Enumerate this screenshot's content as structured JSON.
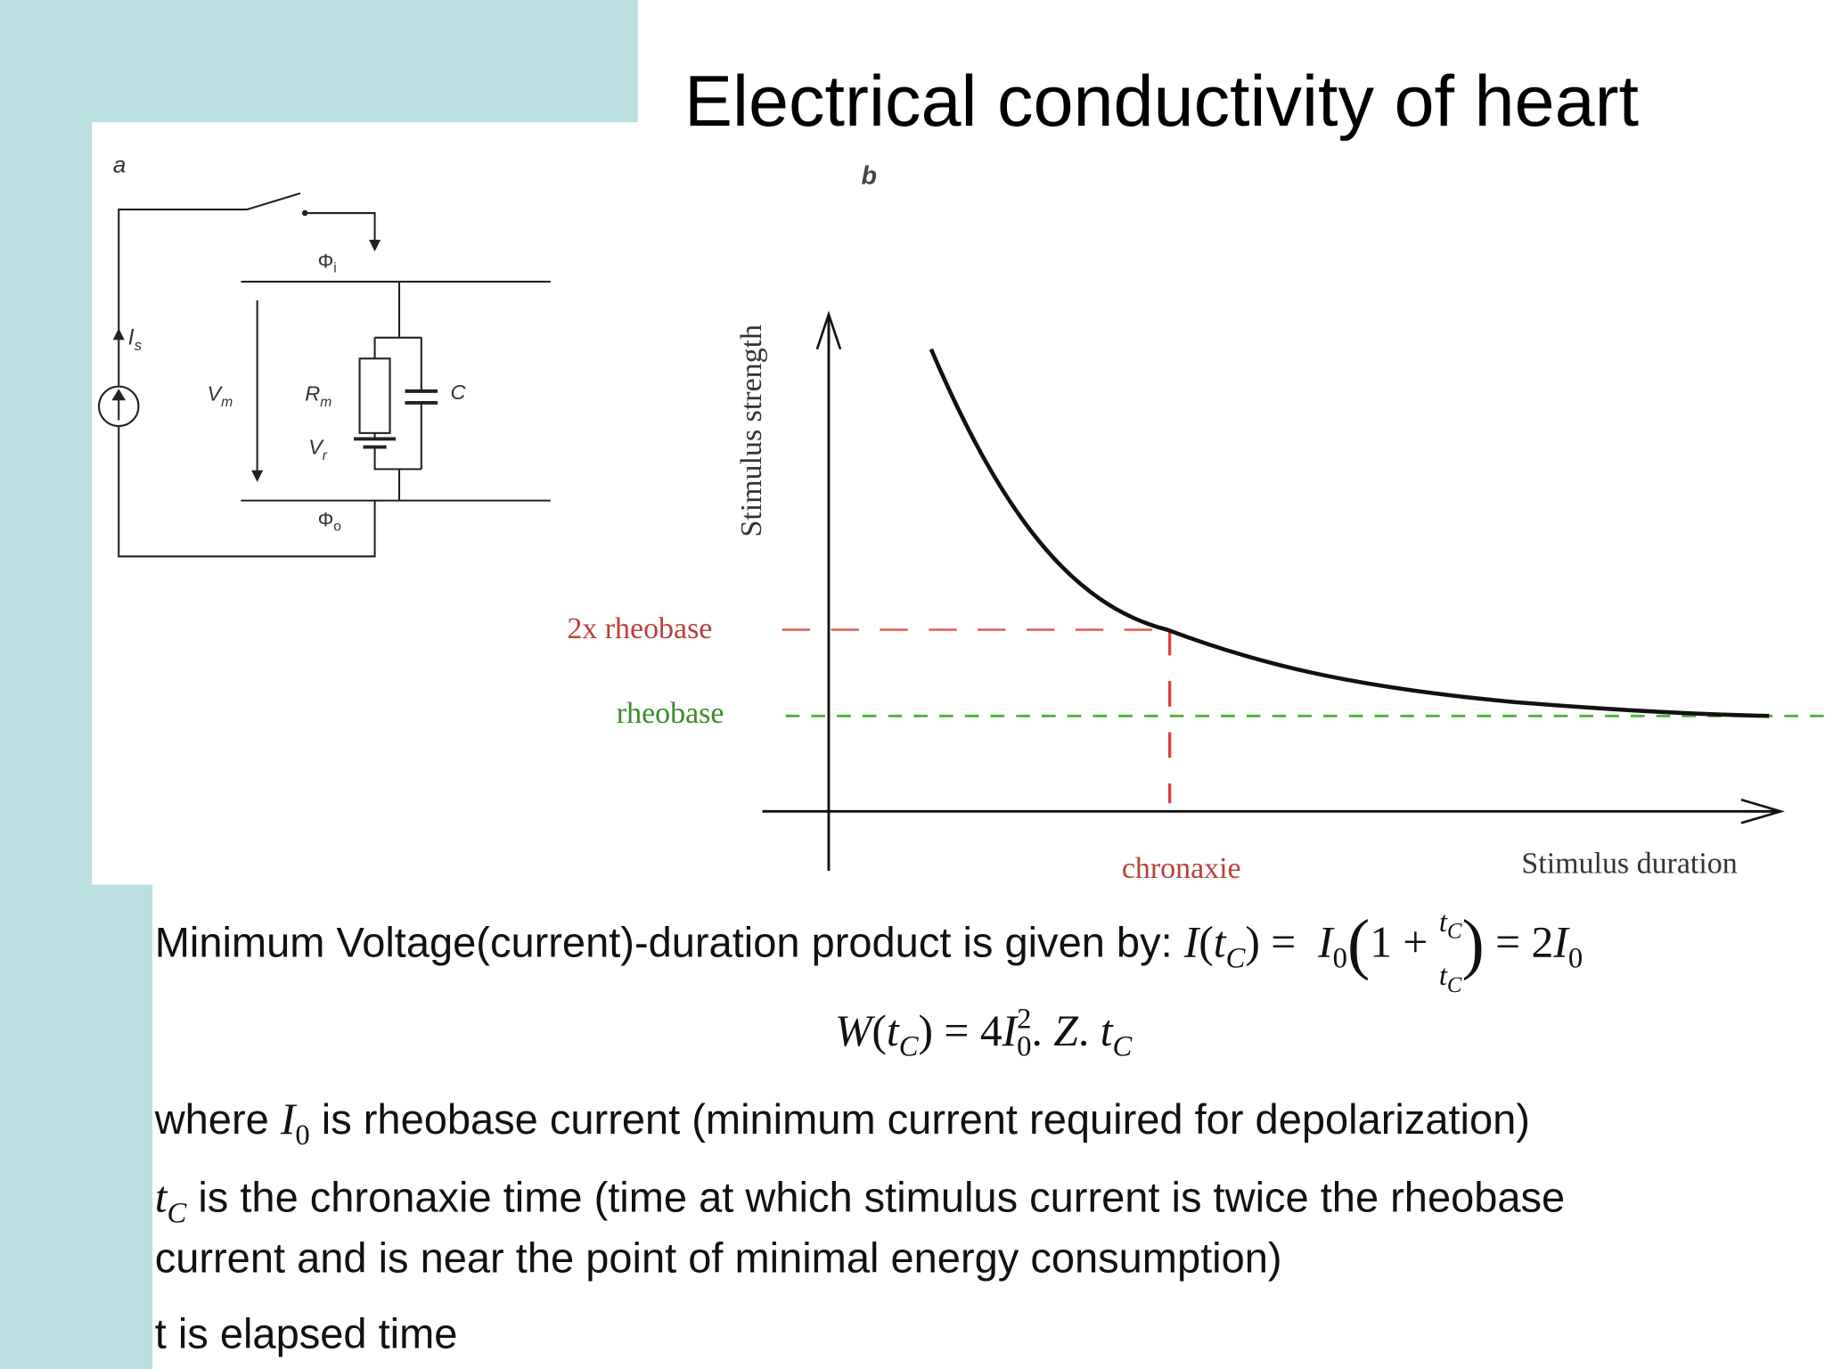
{
  "title": "Electrical conductivity of heart",
  "figure_a": {
    "panel": "a",
    "phi_i": {
      "text": "Φ",
      "sub": "i"
    },
    "i_s": {
      "text": "I",
      "sub": "s"
    },
    "v_m": {
      "text": "V",
      "sub": "m"
    },
    "r_m": {
      "text": "R",
      "sub": "m"
    },
    "c": "C",
    "v_r": {
      "text": "V",
      "sub": "r"
    },
    "phi_o": {
      "text": "Φ",
      "sub": "o"
    }
  },
  "figure_b": {
    "panel": "b",
    "y_axis_label": "Stimulus strength",
    "x_axis_label": "Stimulus duration",
    "twice_rheobase": "2x rheobase",
    "rheobase": "rheobase",
    "chronaxie": "chronaxie"
  },
  "body": [
    {
      "runs": [
        {
          "text": "Minimum Voltage(current)-duration product is given by: ",
          "font": "sans"
        },
        {
          "text": "I",
          "font": "serif-italic"
        },
        {
          "text": "(",
          "font": "serif"
        },
        {
          "text": "t",
          "font": "serif-italic"
        },
        {
          "text": "C",
          "font": "serif-italic",
          "pos": "sub"
        },
        {
          "text": ") =  ",
          "font": "serif"
        },
        {
          "text": "I",
          "font": "serif-italic"
        },
        {
          "text": "0",
          "font": "serif",
          "pos": "sub"
        },
        {
          "text": "(",
          "font": "serif",
          "pos": "big"
        },
        {
          "text": "1 + ",
          "font": "serif"
        },
        {
          "text": "t",
          "font": "serif-italic",
          "pos": "num"
        },
        {
          "text": "C",
          "font": "serif-italic",
          "pos": "num-sub"
        },
        {
          "text": "t",
          "font": "serif-italic",
          "pos": "den"
        },
        {
          "text": "C",
          "font": "serif-italic",
          "pos": "den-sub"
        },
        {
          "text": ")",
          "font": "serif",
          "pos": "big"
        },
        {
          "text": " = 2",
          "font": "serif"
        },
        {
          "text": "I",
          "font": "serif-italic"
        },
        {
          "text": "0",
          "font": "serif",
          "pos": "sub"
        }
      ]
    },
    {
      "align": "center",
      "runs": [
        {
          "text": "W",
          "font": "serif-italic"
        },
        {
          "text": "(",
          "font": "serif"
        },
        {
          "text": "t",
          "font": "serif-italic"
        },
        {
          "text": "C",
          "font": "serif-italic",
          "pos": "sub"
        },
        {
          "text": ") = 4",
          "font": "serif"
        },
        {
          "text": "I",
          "font": "serif-italic"
        },
        {
          "text": "0",
          "font": "serif",
          "pos": "sub"
        },
        {
          "text": "2",
          "font": "serif",
          "pos": "sup",
          "stack": true
        },
        {
          "text": ". ",
          "font": "serif"
        },
        {
          "text": "Z",
          "font": "serif-italic"
        },
        {
          "text": ". ",
          "font": "serif"
        },
        {
          "text": "t",
          "font": "serif-italic"
        },
        {
          "text": "C",
          "font": "serif-italic",
          "pos": "sub"
        }
      ]
    },
    {
      "runs": [
        {
          "text": "where ",
          "font": "sans"
        },
        {
          "text": "I",
          "font": "serif-italic"
        },
        {
          "text": "0",
          "font": "serif",
          "pos": "sub"
        },
        {
          "text": " is rheobase current (minimum current required for depolarization)",
          "font": "sans"
        }
      ]
    },
    {
      "runs": [
        {
          "text": "t",
          "font": "serif-italic"
        },
        {
          "text": "C",
          "font": "serif-italic",
          "pos": "sub"
        },
        {
          "text": " is the chronaxie time (time at which stimulus current is twice the rheobase",
          "font": "sans"
        }
      ]
    },
    {
      "runs": [
        {
          "text": "current and is near the point of minimal energy consumption)",
          "font": "sans"
        }
      ]
    },
    {
      "runs": [
        {
          "text": "t is elapsed time",
          "font": "sans"
        }
      ]
    }
  ]
}
